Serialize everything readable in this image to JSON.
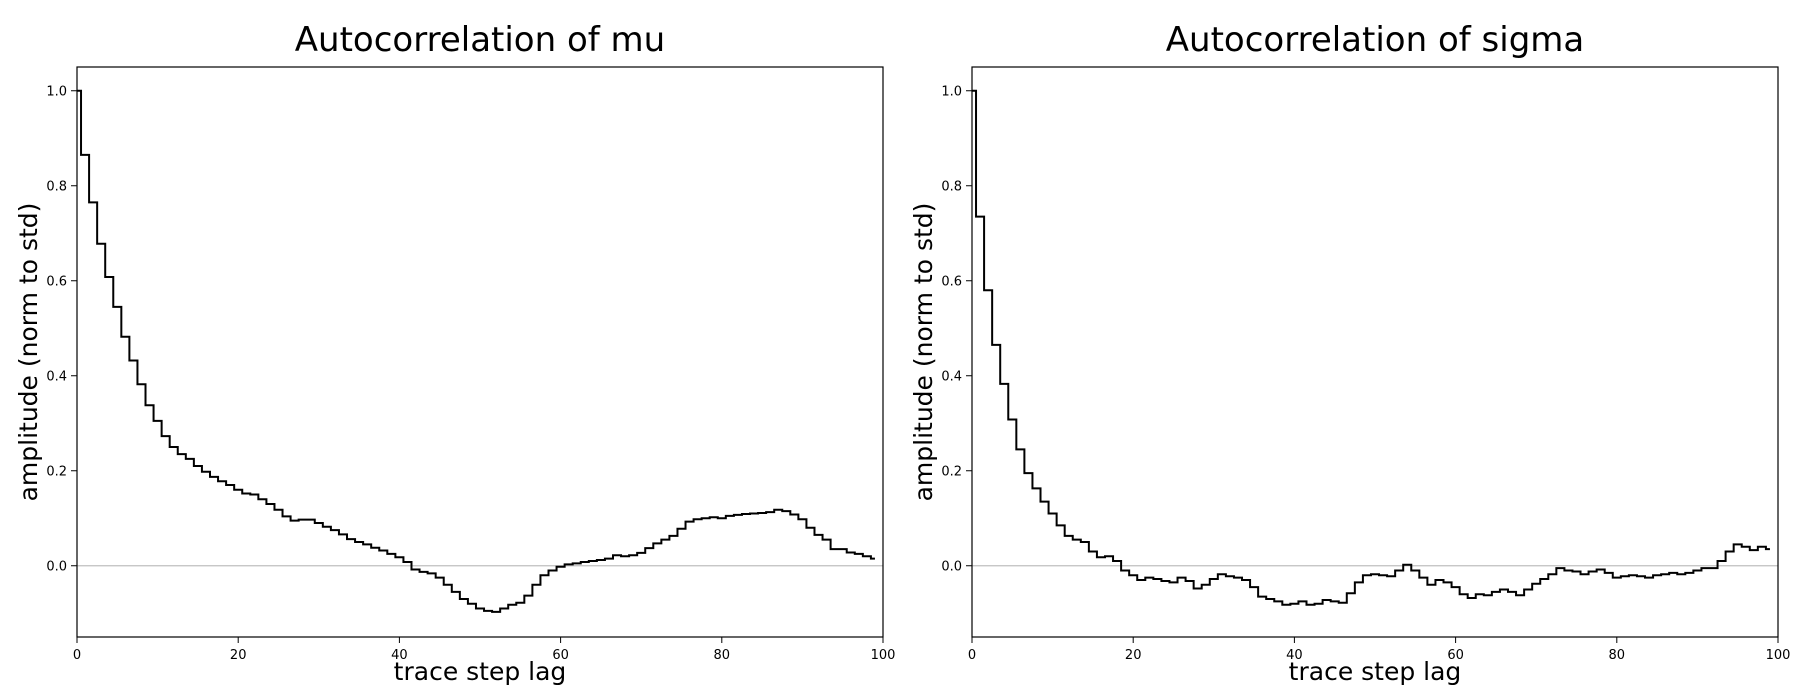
{
  "chart_data": [
    {
      "type": "line",
      "drawstyle": "steps-mid",
      "title": "Autocorrelation of mu",
      "xlabel": "trace step lag",
      "ylabel": "amplitude (norm to std)",
      "xlim": [
        0,
        100
      ],
      "ylim": [
        -0.15,
        1.05
      ],
      "xticks": [
        0,
        20,
        40,
        60,
        80,
        100
      ],
      "yticks": [
        0.0,
        0.2,
        0.4,
        0.6,
        0.8,
        1.0
      ],
      "xtick_labels": [
        "0",
        "20",
        "40",
        "60",
        "80",
        "100"
      ],
      "ytick_labels": [
        "0.0",
        "0.2",
        "0.4",
        "0.6",
        "0.8",
        "1.0"
      ],
      "grid": false,
      "reference_line": {
        "y": 0.0,
        "color": "#bfbfbf"
      },
      "line_color": "#000000",
      "values": [
        1.0,
        0.865,
        0.765,
        0.678,
        0.608,
        0.545,
        0.482,
        0.432,
        0.382,
        0.338,
        0.305,
        0.273,
        0.25,
        0.235,
        0.225,
        0.21,
        0.198,
        0.187,
        0.178,
        0.17,
        0.16,
        0.152,
        0.15,
        0.14,
        0.13,
        0.118,
        0.104,
        0.095,
        0.097,
        0.097,
        0.09,
        0.082,
        0.075,
        0.066,
        0.056,
        0.05,
        0.045,
        0.038,
        0.032,
        0.025,
        0.018,
        0.008,
        -0.008,
        -0.013,
        -0.016,
        -0.025,
        -0.04,
        -0.055,
        -0.07,
        -0.08,
        -0.09,
        -0.095,
        -0.097,
        -0.09,
        -0.082,
        -0.078,
        -0.063,
        -0.04,
        -0.02,
        -0.01,
        -0.002,
        0.003,
        0.005,
        0.008,
        0.01,
        0.012,
        0.015,
        0.022,
        0.02,
        0.022,
        0.027,
        0.037,
        0.047,
        0.055,
        0.063,
        0.078,
        0.093,
        0.098,
        0.1,
        0.102,
        0.1,
        0.105,
        0.107,
        0.109,
        0.11,
        0.111,
        0.113,
        0.118,
        0.115,
        0.108,
        0.098,
        0.08,
        0.065,
        0.055,
        0.035,
        0.035,
        0.028,
        0.025,
        0.02,
        0.015
      ]
    },
    {
      "type": "line",
      "drawstyle": "steps-mid",
      "title": "Autocorrelation of sigma",
      "xlabel": "trace step lag",
      "ylabel": "amplitude (norm to std)",
      "xlim": [
        0,
        100
      ],
      "ylim": [
        -0.15,
        1.05
      ],
      "xticks": [
        0,
        20,
        40,
        60,
        80,
        100
      ],
      "yticks": [
        0.0,
        0.2,
        0.4,
        0.6,
        0.8,
        1.0
      ],
      "xtick_labels": [
        "0",
        "20",
        "40",
        "60",
        "80",
        "100"
      ],
      "ytick_labels": [
        "0.0",
        "0.2",
        "0.4",
        "0.6",
        "0.8",
        "1.0"
      ],
      "grid": false,
      "reference_line": {
        "y": 0.0,
        "color": "#bfbfbf"
      },
      "line_color": "#000000",
      "values": [
        1.0,
        0.735,
        0.58,
        0.465,
        0.383,
        0.308,
        0.245,
        0.195,
        0.163,
        0.135,
        0.11,
        0.085,
        0.063,
        0.055,
        0.05,
        0.03,
        0.018,
        0.02,
        0.01,
        -0.01,
        -0.02,
        -0.03,
        -0.025,
        -0.028,
        -0.032,
        -0.035,
        -0.025,
        -0.032,
        -0.048,
        -0.04,
        -0.028,
        -0.018,
        -0.022,
        -0.025,
        -0.03,
        -0.045,
        -0.065,
        -0.07,
        -0.075,
        -0.082,
        -0.08,
        -0.075,
        -0.082,
        -0.08,
        -0.072,
        -0.075,
        -0.078,
        -0.058,
        -0.035,
        -0.02,
        -0.018,
        -0.02,
        -0.022,
        -0.01,
        0.002,
        -0.01,
        -0.025,
        -0.04,
        -0.03,
        -0.035,
        -0.045,
        -0.06,
        -0.068,
        -0.06,
        -0.062,
        -0.055,
        -0.05,
        -0.055,
        -0.062,
        -0.05,
        -0.038,
        -0.028,
        -0.018,
        -0.005,
        -0.01,
        -0.012,
        -0.018,
        -0.012,
        -0.008,
        -0.015,
        -0.025,
        -0.022,
        -0.02,
        -0.022,
        -0.025,
        -0.02,
        -0.018,
        -0.015,
        -0.018,
        -0.015,
        -0.01,
        -0.005,
        -0.005,
        0.01,
        0.03,
        0.045,
        0.04,
        0.033,
        0.04,
        0.035
      ]
    }
  ]
}
